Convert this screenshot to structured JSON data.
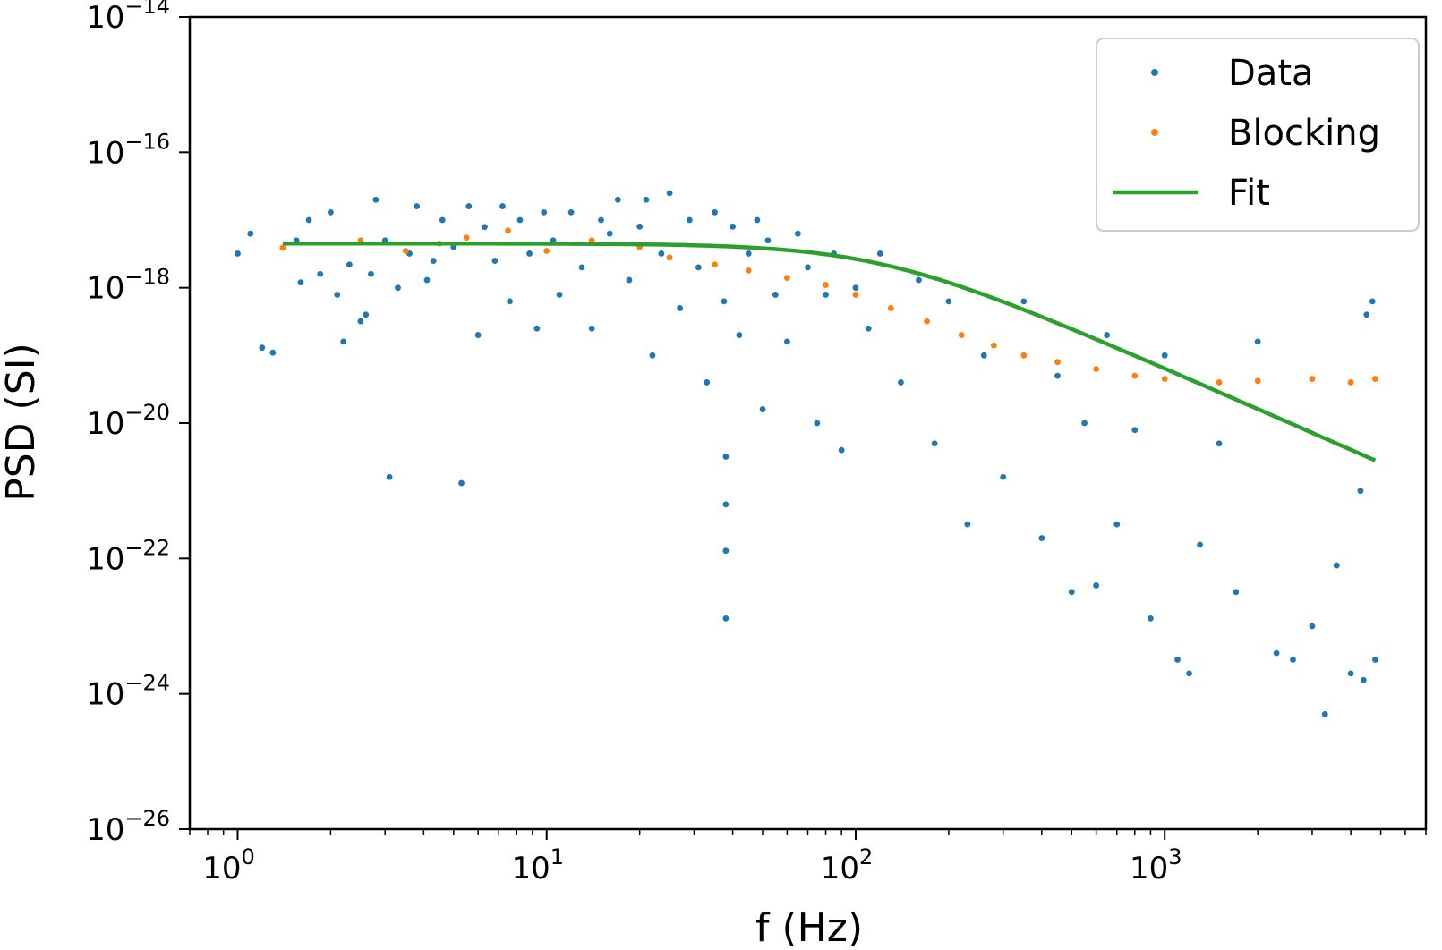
{
  "chart_data": {
    "type": "scatter",
    "title": "",
    "xlabel": "f (Hz)",
    "ylabel": "PSD (SI)",
    "xscale": "log",
    "yscale": "log",
    "xlim": [
      0.7,
      7000
    ],
    "ylim": [
      1e-26,
      1e-14
    ],
    "x_tick_labels": [
      {
        "value": 1,
        "base": "10",
        "exp": "0"
      },
      {
        "value": 10,
        "base": "10",
        "exp": "1"
      },
      {
        "value": 100,
        "base": "10",
        "exp": "2"
      },
      {
        "value": 1000,
        "base": "10",
        "exp": "3"
      }
    ],
    "y_tick_labels": [
      {
        "value": 1e-14,
        "base": "10",
        "exp": "−14"
      },
      {
        "value": 1e-16,
        "base": "10",
        "exp": "−16"
      },
      {
        "value": 1e-18,
        "base": "10",
        "exp": "−18"
      },
      {
        "value": 1e-20,
        "base": "10",
        "exp": "−20"
      },
      {
        "value": 1e-22,
        "base": "10",
        "exp": "−22"
      },
      {
        "value": 1e-24,
        "base": "10",
        "exp": "−24"
      },
      {
        "value": 1e-26,
        "base": "10",
        "exp": "−26"
      }
    ],
    "legend": {
      "position": "upper right",
      "entries": [
        {
          "label": "Data",
          "marker": "dot",
          "color": "#1f77b4"
        },
        {
          "label": "Blocking",
          "marker": "dot",
          "color": "#ff7f0e"
        },
        {
          "label": "Fit",
          "marker": "line",
          "color": "#2ca02c"
        }
      ]
    },
    "series": [
      {
        "name": "Data",
        "kind": "scatter",
        "color": "#1f77b4",
        "points": [
          [
            1.0,
            3.2e-18
          ],
          [
            1.1,
            6.3e-18
          ],
          [
            1.2,
            1.3e-19
          ],
          [
            1.3,
            1.1e-19
          ],
          [
            1.55,
            5e-18
          ],
          [
            1.6,
            1.2e-18
          ],
          [
            1.7,
            1e-17
          ],
          [
            1.85,
            1.6e-18
          ],
          [
            2.0,
            1.3e-17
          ],
          [
            2.1,
            7.9e-19
          ],
          [
            2.2,
            1.6e-19
          ],
          [
            2.3,
            2.2e-18
          ],
          [
            2.5,
            3.2e-19
          ],
          [
            2.6,
            4e-19
          ],
          [
            2.7,
            1.6e-18
          ],
          [
            2.8,
            2e-17
          ],
          [
            3.0,
            5e-18
          ],
          [
            3.1,
            1.6e-21
          ],
          [
            3.3,
            1e-18
          ],
          [
            3.6,
            3.2e-18
          ],
          [
            3.8,
            1.6e-17
          ],
          [
            4.1,
            1.3e-18
          ],
          [
            4.3,
            2.5e-18
          ],
          [
            4.6,
            1e-17
          ],
          [
            5.0,
            4e-18
          ],
          [
            5.3,
            1.3e-21
          ],
          [
            5.6,
            1.6e-17
          ],
          [
            6.0,
            2e-19
          ],
          [
            6.3,
            7.9e-18
          ],
          [
            6.8,
            2.5e-18
          ],
          [
            7.2,
            1.6e-17
          ],
          [
            7.6,
            6.3e-19
          ],
          [
            8.2,
            1e-17
          ],
          [
            8.8,
            3.2e-18
          ],
          [
            9.3,
            2.5e-19
          ],
          [
            9.8,
            1.3e-17
          ],
          [
            10.5,
            5e-18
          ],
          [
            11.0,
            7.9e-19
          ],
          [
            12.0,
            1.3e-17
          ],
          [
            13.0,
            2e-18
          ],
          [
            14.0,
            2.5e-19
          ],
          [
            15.0,
            1e-17
          ],
          [
            16.0,
            6.3e-18
          ],
          [
            17.0,
            2e-17
          ],
          [
            18.5,
            1.3e-18
          ],
          [
            20.0,
            8e-18
          ],
          [
            21.0,
            2e-17
          ],
          [
            22.0,
            1e-19
          ],
          [
            23.5,
            3.2e-18
          ],
          [
            25.0,
            2.5e-17
          ],
          [
            27.0,
            5e-19
          ],
          [
            29.0,
            1e-17
          ],
          [
            31.0,
            2e-18
          ],
          [
            33.0,
            4e-20
          ],
          [
            35.0,
            1.3e-17
          ],
          [
            37.5,
            6.3e-19
          ],
          [
            38.0,
            3.2e-21
          ],
          [
            38.0,
            6.3e-22
          ],
          [
            38.0,
            1.3e-22
          ],
          [
            38.0,
            1.3e-23
          ],
          [
            40.0,
            8e-18
          ],
          [
            42.0,
            2e-19
          ],
          [
            45.0,
            3.2e-18
          ],
          [
            48.0,
            1e-17
          ],
          [
            50.0,
            1.6e-20
          ],
          [
            52.0,
            5e-18
          ],
          [
            55.0,
            7.9e-19
          ],
          [
            60.0,
            1.6e-19
          ],
          [
            65.0,
            6.3e-18
          ],
          [
            70.0,
            2e-18
          ],
          [
            75.0,
            1e-20
          ],
          [
            80.0,
            7.9e-19
          ],
          [
            85.0,
            3.2e-18
          ],
          [
            90.0,
            4e-21
          ],
          [
            100.0,
            1e-18
          ],
          [
            110.0,
            2.5e-19
          ],
          [
            120.0,
            3.2e-18
          ],
          [
            140.0,
            4e-20
          ],
          [
            160.0,
            1.3e-18
          ],
          [
            180.0,
            5e-21
          ],
          [
            200.0,
            6.3e-19
          ],
          [
            230.0,
            3.2e-22
          ],
          [
            260.0,
            1e-19
          ],
          [
            300.0,
            1.6e-21
          ],
          [
            350.0,
            6.3e-19
          ],
          [
            400.0,
            2e-22
          ],
          [
            450.0,
            5e-20
          ],
          [
            500.0,
            3.2e-23
          ],
          [
            550.0,
            1e-20
          ],
          [
            600.0,
            4e-23
          ],
          [
            650.0,
            2e-19
          ],
          [
            700.0,
            3.2e-22
          ],
          [
            800.0,
            7.9e-21
          ],
          [
            900.0,
            1.3e-23
          ],
          [
            1000.0,
            1e-19
          ],
          [
            1100.0,
            3.2e-24
          ],
          [
            1200.0,
            2e-24
          ],
          [
            1300.0,
            1.6e-22
          ],
          [
            1500.0,
            5e-21
          ],
          [
            1700.0,
            3.2e-23
          ],
          [
            2000.0,
            1.6e-19
          ],
          [
            2300.0,
            4e-24
          ],
          [
            2600.0,
            3.2e-24
          ],
          [
            3000.0,
            1e-23
          ],
          [
            3300.0,
            5e-25
          ],
          [
            3600.0,
            7.9e-23
          ],
          [
            4000.0,
            2e-24
          ],
          [
            4400.0,
            1.6e-24
          ],
          [
            4800.0,
            3.2e-24
          ],
          [
            4700.0,
            6.3e-19
          ],
          [
            4500.0,
            4e-19
          ],
          [
            4300.0,
            1e-21
          ]
        ]
      },
      {
        "name": "Blocking",
        "kind": "scatter",
        "color": "#ff7f0e",
        "points": [
          [
            1.4,
            3.9e-18
          ],
          [
            2.5,
            5e-18
          ],
          [
            3.5,
            3.5e-18
          ],
          [
            4.5,
            4.5e-18
          ],
          [
            5.5,
            5.5e-18
          ],
          [
            7.5,
            7e-18
          ],
          [
            10.0,
            3.5e-18
          ],
          [
            14.0,
            5e-18
          ],
          [
            20.0,
            4e-18
          ],
          [
            25.0,
            2.8e-18
          ],
          [
            35.0,
            2.2e-18
          ],
          [
            45.0,
            1.8e-18
          ],
          [
            60.0,
            1.4e-18
          ],
          [
            80.0,
            1.1e-18
          ],
          [
            100.0,
            7.9e-19
          ],
          [
            130.0,
            5e-19
          ],
          [
            170.0,
            3.2e-19
          ],
          [
            220.0,
            2e-19
          ],
          [
            280.0,
            1.4e-19
          ],
          [
            350.0,
            1e-19
          ],
          [
            450.0,
            8e-20
          ],
          [
            600.0,
            6.3e-20
          ],
          [
            800.0,
            5e-20
          ],
          [
            1000.0,
            4.5e-20
          ],
          [
            1500.0,
            4e-20
          ],
          [
            2000.0,
            4.2e-20
          ],
          [
            3000.0,
            4.5e-20
          ],
          [
            4000.0,
            4e-20
          ],
          [
            4800.0,
            4.5e-20
          ]
        ]
      },
      {
        "name": "Fit",
        "kind": "line",
        "color": "#2ca02c",
        "model": "lorentzian",
        "S0": 4.5e-18,
        "f_corner": 120,
        "f_range": [
          1.4,
          4800
        ]
      }
    ]
  }
}
